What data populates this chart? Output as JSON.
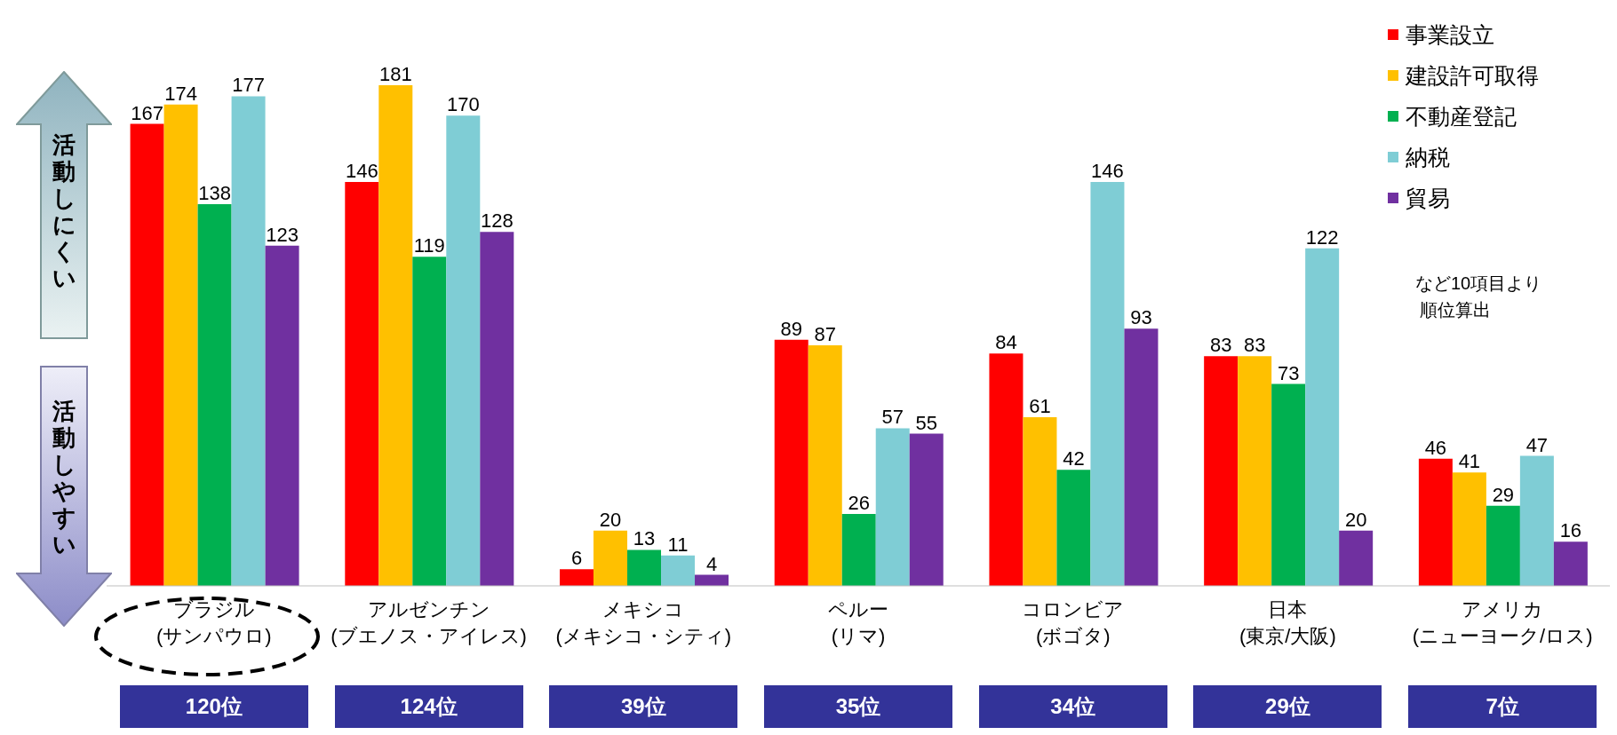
{
  "chart_data": {
    "type": "bar",
    "categories": [
      "ブラジル\n(サンパウロ)",
      "アルゼンチン\n(ブエノス・アイレス)",
      "メキシコ\n(メキシコ・シティ)",
      "ペルー\n(リマ)",
      "コロンビア\n(ボゴタ)",
      "日本\n(東京/大阪)",
      "アメリカ\n(ニューヨーク/ロス)"
    ],
    "series": [
      {
        "name": "事業設立",
        "color": "#ff0000",
        "values": [
          167,
          146,
          6,
          89,
          84,
          83,
          46
        ]
      },
      {
        "name": "建設許可取得",
        "color": "#ffc000",
        "values": [
          174,
          181,
          20,
          87,
          61,
          83,
          41
        ]
      },
      {
        "name": "不動産登記",
        "color": "#00b050",
        "values": [
          138,
          119,
          13,
          26,
          42,
          73,
          29
        ]
      },
      {
        "name": "納税",
        "color": "#7fcdd5",
        "values": [
          177,
          170,
          11,
          57,
          146,
          122,
          47
        ]
      },
      {
        "name": "貿易",
        "color": "#7030a0",
        "values": [
          123,
          128,
          4,
          55,
          93,
          20,
          16
        ]
      }
    ],
    "data_labels": true,
    "grid": false,
    "legend": "top right",
    "annotations": [
      "活動しにくい",
      "活動しやすい",
      "など10項目より",
      "順位算出",
      "120位",
      "124位",
      "39位",
      "35位",
      "34位",
      "29位",
      "7位"
    ]
  }
}
